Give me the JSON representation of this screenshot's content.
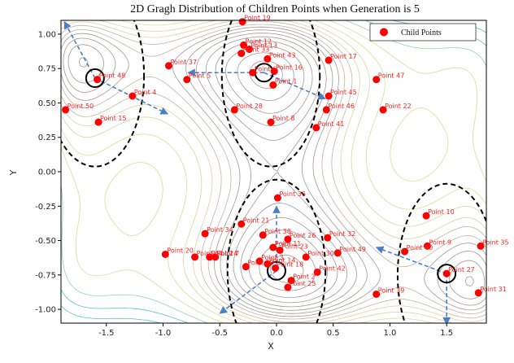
{
  "chart_data": {
    "type": "scatter",
    "title": "2D Gragh Distribution of Children Points when Generation is 5",
    "xlabel": "X",
    "ylabel": "Y",
    "xlim": [
      -1.9,
      1.85
    ],
    "ylim": [
      -1.1,
      1.1
    ],
    "xticks": [
      -1.5,
      -1.0,
      -0.5,
      0.0,
      0.5,
      1.0,
      1.5
    ],
    "xtick_labels": [
      "-1.5",
      "-1.0",
      "-0.5",
      "0.0",
      "0.5",
      "1.0",
      "1.5"
    ],
    "yticks": [
      -1.0,
      -0.75,
      -0.5,
      -0.25,
      0.0,
      0.25,
      0.5,
      0.75,
      1.0
    ],
    "ytick_labels": [
      "-1.00",
      "-0.75",
      "-0.50",
      "-0.25",
      "0.00",
      "0.25",
      "0.50",
      "0.75",
      "1.00"
    ],
    "grid": false,
    "legend": {
      "position": "top-right",
      "entries": [
        "Child Points"
      ]
    },
    "point_color": "#ff0000",
    "contour_colors": [
      "#2bb3b9",
      "#7cc8a0",
      "#c9d97e",
      "#d8c58a",
      "#b8a088",
      "#8e7c7a"
    ],
    "series": [
      {
        "name": "Child Points",
        "points": [
          {
            "label": "Point 1",
            "x": -0.03,
            "y": 0.63
          },
          {
            "label": "Point 2",
            "x": 0.13,
            "y": -0.79
          },
          {
            "label": "Point 3",
            "x": -0.15,
            "y": -0.65
          },
          {
            "label": "Point 4",
            "x": -1.27,
            "y": 0.55
          },
          {
            "label": "Point 5",
            "x": -0.79,
            "y": 0.67
          },
          {
            "label": "Point 6",
            "x": -0.21,
            "y": 0.72
          },
          {
            "label": "Point 7",
            "x": -0.54,
            "y": -0.62
          },
          {
            "label": "Point 8",
            "x": -0.05,
            "y": 0.36
          },
          {
            "label": "Point 9",
            "x": 1.33,
            "y": -0.54
          },
          {
            "label": "Point 10",
            "x": 1.32,
            "y": -0.32
          },
          {
            "label": "Point 11",
            "x": -0.03,
            "y": -0.55
          },
          {
            "label": "Point 12",
            "x": -0.29,
            "y": 0.92
          },
          {
            "label": "Point 13",
            "x": -0.24,
            "y": 0.89
          },
          {
            "label": "Point 14",
            "x": -0.08,
            "y": -0.67
          },
          {
            "label": "Point 15",
            "x": -1.57,
            "y": 0.36
          },
          {
            "label": "Point 16",
            "x": -0.02,
            "y": 0.73
          },
          {
            "label": "Point 17",
            "x": 0.46,
            "y": 0.81
          },
          {
            "label": "Point 18",
            "x": -0.01,
            "y": -0.7
          },
          {
            "label": "Point 19",
            "x": -0.3,
            "y": 1.09
          },
          {
            "label": "Point 20",
            "x": -0.98,
            "y": -0.6
          },
          {
            "label": "Point 21",
            "x": -0.31,
            "y": -0.38
          },
          {
            "label": "Point 22",
            "x": 0.94,
            "y": 0.45
          },
          {
            "label": "Point 23",
            "x": 0.03,
            "y": -0.57
          },
          {
            "label": "Point 24",
            "x": -0.59,
            "y": -0.62
          },
          {
            "label": "Point 25",
            "x": 0.1,
            "y": -0.84
          },
          {
            "label": "Point 26",
            "x": 0.1,
            "y": -0.49
          },
          {
            "label": "Point 27",
            "x": 1.5,
            "y": -0.74
          },
          {
            "label": "Point 28",
            "x": -0.37,
            "y": 0.45
          },
          {
            "label": "Point 29",
            "x": -0.27,
            "y": -0.69
          },
          {
            "label": "Point 30",
            "x": 0.26,
            "y": -0.62
          },
          {
            "label": "Point 31",
            "x": 1.78,
            "y": -0.88
          },
          {
            "label": "Point 32",
            "x": 0.45,
            "y": -0.48
          },
          {
            "label": "Point 33",
            "x": -0.31,
            "y": 0.86
          },
          {
            "label": "Point 34",
            "x": -0.63,
            "y": -0.45
          },
          {
            "label": "Point 35",
            "x": 1.8,
            "y": -0.54
          },
          {
            "label": "Point 36",
            "x": 0.01,
            "y": -0.19
          },
          {
            "label": "Point 37",
            "x": -0.95,
            "y": 0.77
          },
          {
            "label": "Point 38",
            "x": -0.12,
            "y": -0.46
          },
          {
            "label": "Point 39",
            "x": 0.88,
            "y": -0.89
          },
          {
            "label": "Point 40",
            "x": 1.13,
            "y": -0.58
          },
          {
            "label": "Point 41",
            "x": 0.35,
            "y": 0.32
          },
          {
            "label": "Point 42",
            "x": 0.36,
            "y": -0.73
          },
          {
            "label": "Point 43",
            "x": -0.08,
            "y": 0.82
          },
          {
            "label": "Point 44",
            "x": -0.72,
            "y": -0.62
          },
          {
            "label": "Point 45",
            "x": 0.46,
            "y": 0.55
          },
          {
            "label": "Point 46",
            "x": 0.44,
            "y": 0.45
          },
          {
            "label": "Point 47",
            "x": 0.88,
            "y": 0.67
          },
          {
            "label": "Point 48",
            "x": -1.58,
            "y": 0.67
          },
          {
            "label": "Point 49",
            "x": 0.54,
            "y": -0.59
          },
          {
            "label": "Point 50",
            "x": -1.86,
            "y": 0.45
          }
        ]
      }
    ],
    "centers": [
      {
        "x": -1.6,
        "y": 0.68
      },
      {
        "x": -0.11,
        "y": 0.72
      },
      {
        "x": 0.0,
        "y": -0.72
      },
      {
        "x": 1.5,
        "y": -0.74
      }
    ],
    "regions": [
      {
        "cx": -1.6,
        "cy": 0.7,
        "r": 0.72
      },
      {
        "cx": -0.05,
        "cy": 0.7,
        "r": 0.72
      },
      {
        "cx": 0.0,
        "cy": -0.72,
        "r": 0.72
      },
      {
        "cx": 1.5,
        "cy": -0.75,
        "r": 0.72
      }
    ],
    "arrows": [
      {
        "from": [
          -1.6,
          0.68
        ],
        "to": [
          -1.87,
          1.09
        ]
      },
      {
        "from": [
          -1.6,
          0.68
        ],
        "to": [
          -0.96,
          0.42
        ]
      },
      {
        "from": [
          -0.11,
          0.72
        ],
        "to": [
          -0.78,
          0.72
        ]
      },
      {
        "from": [
          -0.11,
          0.72
        ],
        "to": [
          0.43,
          0.53
        ]
      },
      {
        "from": [
          0.0,
          -0.72
        ],
        "to": [
          0.0,
          -0.25
        ]
      },
      {
        "from": [
          0.0,
          -0.72
        ],
        "to": [
          -0.5,
          -1.03
        ]
      },
      {
        "from": [
          1.5,
          -0.74
        ],
        "to": [
          0.88,
          -0.55
        ]
      },
      {
        "from": [
          1.5,
          -0.74
        ],
        "to": [
          1.5,
          -1.11
        ]
      }
    ]
  }
}
